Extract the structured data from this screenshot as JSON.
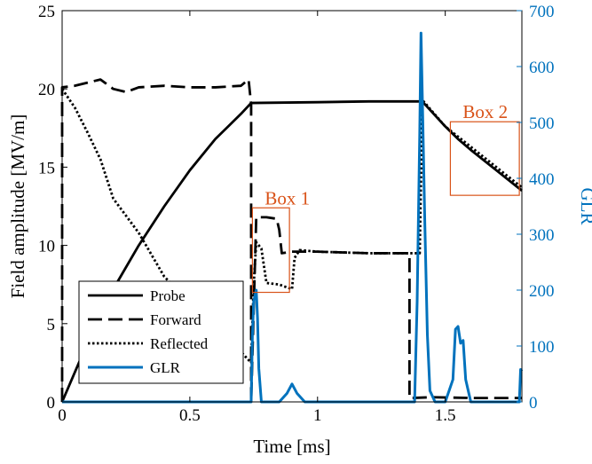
{
  "chart_data": {
    "type": "line",
    "xlabel": "Time [ms]",
    "ylabel_left": "Field amplitude [MV/m]",
    "ylabel_right": "GLR",
    "xlim": [
      0,
      1.8
    ],
    "ylim_left": [
      0,
      25
    ],
    "ylim_right": [
      0,
      700
    ],
    "xticks": [
      "0",
      "0.5",
      "1",
      "1.5"
    ],
    "xtick_values": [
      0,
      0.5,
      1,
      1.5
    ],
    "yticks_left": [
      "0",
      "5",
      "10",
      "15",
      "20",
      "25"
    ],
    "ytick_values_left": [
      0,
      5,
      10,
      15,
      20,
      25
    ],
    "yticks_right": [
      "0",
      "100",
      "200",
      "300",
      "400",
      "500",
      "600",
      "700"
    ],
    "ytick_values_right": [
      0,
      100,
      200,
      300,
      400,
      500,
      600,
      700
    ],
    "grid": false,
    "legend_position": "bottom-left",
    "colors": {
      "black": "#000000",
      "glr": "#0072BD",
      "box": "#D95319"
    },
    "series": [
      {
        "name": "Probe",
        "axis": "left",
        "style": "solid",
        "x": [
          0,
          0.05,
          0.1,
          0.2,
          0.3,
          0.4,
          0.5,
          0.6,
          0.7,
          0.74,
          1.0,
          1.2,
          1.4,
          1.41,
          1.5,
          1.55,
          1.6,
          1.7,
          1.8
        ],
        "y": [
          0,
          1.9,
          3.8,
          7.2,
          10.0,
          12.5,
          14.8,
          16.8,
          18.4,
          19.1,
          19.15,
          19.2,
          19.2,
          19.2,
          17.6,
          16.8,
          16.1,
          14.8,
          13.5
        ]
      },
      {
        "name": "Forward",
        "axis": "left",
        "style": "dashed",
        "x": [
          0,
          0.0,
          0.05,
          0.1,
          0.15,
          0.2,
          0.25,
          0.3,
          0.4,
          0.5,
          0.6,
          0.7,
          0.73,
          0.74,
          0.74,
          0.76,
          0.8,
          0.84,
          0.85,
          0.86,
          0.9,
          1.0,
          1.2,
          1.36,
          1.36,
          1.37,
          1.45,
          1.6,
          1.8
        ],
        "y": [
          0,
          20.1,
          20.2,
          20.4,
          20.6,
          20.0,
          19.8,
          20.1,
          20.2,
          20.1,
          20.1,
          20.2,
          20.6,
          19.0,
          0.0,
          11.8,
          11.8,
          11.7,
          11.0,
          9.5,
          9.6,
          9.6,
          9.5,
          9.5,
          0.25,
          0.25,
          0.3,
          0.25,
          0.25
        ]
      },
      {
        "name": "Reflected",
        "axis": "left",
        "style": "dotted",
        "x": [
          0,
          0.05,
          0.1,
          0.15,
          0.2,
          0.3,
          0.4,
          0.5,
          0.6,
          0.7,
          0.74,
          0.75,
          0.76,
          0.78,
          0.8,
          0.85,
          0.9,
          0.91,
          0.93,
          1.0,
          1.2,
          1.4,
          1.41,
          1.5,
          1.6,
          1.7,
          1.8
        ],
        "y": [
          20.0,
          18.8,
          17.2,
          15.5,
          13.0,
          10.8,
          8.0,
          6.4,
          4.8,
          3.2,
          2.5,
          7.5,
          10.2,
          9.8,
          7.6,
          7.5,
          7.2,
          9.2,
          9.7,
          9.6,
          9.5,
          9.5,
          19.3,
          17.6,
          16.3,
          15.0,
          13.7
        ]
      },
      {
        "name": "GLR",
        "axis": "right",
        "style": "solid",
        "x": [
          0,
          0.74,
          0.745,
          0.75,
          0.76,
          0.765,
          0.77,
          0.78,
          0.8,
          0.85,
          0.88,
          0.9,
          0.92,
          0.95,
          1.0,
          1.35,
          1.38,
          1.39,
          1.4,
          1.405,
          1.41,
          1.42,
          1.43,
          1.44,
          1.46,
          1.5,
          1.53,
          1.54,
          1.55,
          1.56,
          1.57,
          1.58,
          1.6,
          1.7,
          1.79,
          1.795,
          1.8
        ],
        "y": [
          0,
          0,
          120,
          180,
          200,
          150,
          60,
          0,
          0,
          0,
          15,
          32,
          15,
          0,
          0,
          0,
          0,
          180,
          480,
          660,
          550,
          320,
          120,
          20,
          0,
          0,
          40,
          130,
          135,
          105,
          110,
          40,
          0,
          0,
          0,
          58,
          55
        ]
      }
    ],
    "annotations": [
      {
        "label": "Box 1",
        "x_range": [
          0.745,
          0.89
        ],
        "y_range": [
          7.0,
          12.4
        ]
      },
      {
        "label": "Box 2",
        "x_range": [
          1.52,
          1.79
        ],
        "y_range": [
          13.2,
          17.9
        ]
      }
    ]
  }
}
